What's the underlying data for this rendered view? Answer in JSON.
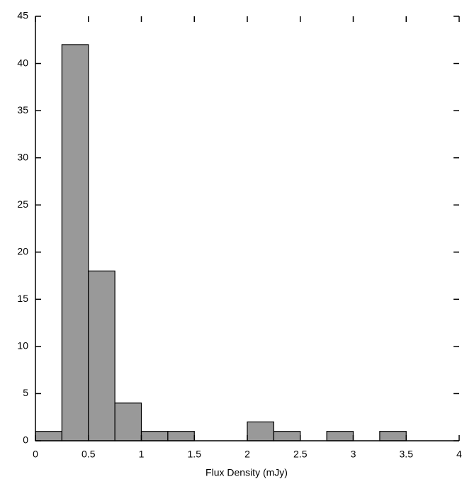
{
  "chart_data": {
    "type": "histogram",
    "x_label": "Flux Density (mJy)",
    "bins": [
      0,
      0.25,
      0.5,
      0.75,
      1,
      1.25,
      1.5,
      1.75,
      2,
      2.25,
      2.5,
      2.75,
      3,
      3.25,
      3.5,
      3.75,
      4
    ],
    "values": [
      1,
      42,
      18,
      4,
      1,
      1,
      0,
      0,
      2,
      1,
      0,
      1,
      0,
      1,
      0,
      0
    ],
    "color": "#999999",
    "xlim": [
      0,
      4
    ],
    "xticks": [
      0,
      0.5,
      1,
      1.5,
      2,
      2.5,
      3,
      3.5,
      4
    ],
    "ylim": [
      0,
      45
    ],
    "yticks": [
      0,
      5,
      10,
      15,
      20,
      25,
      30,
      35,
      40,
      45
    ]
  }
}
